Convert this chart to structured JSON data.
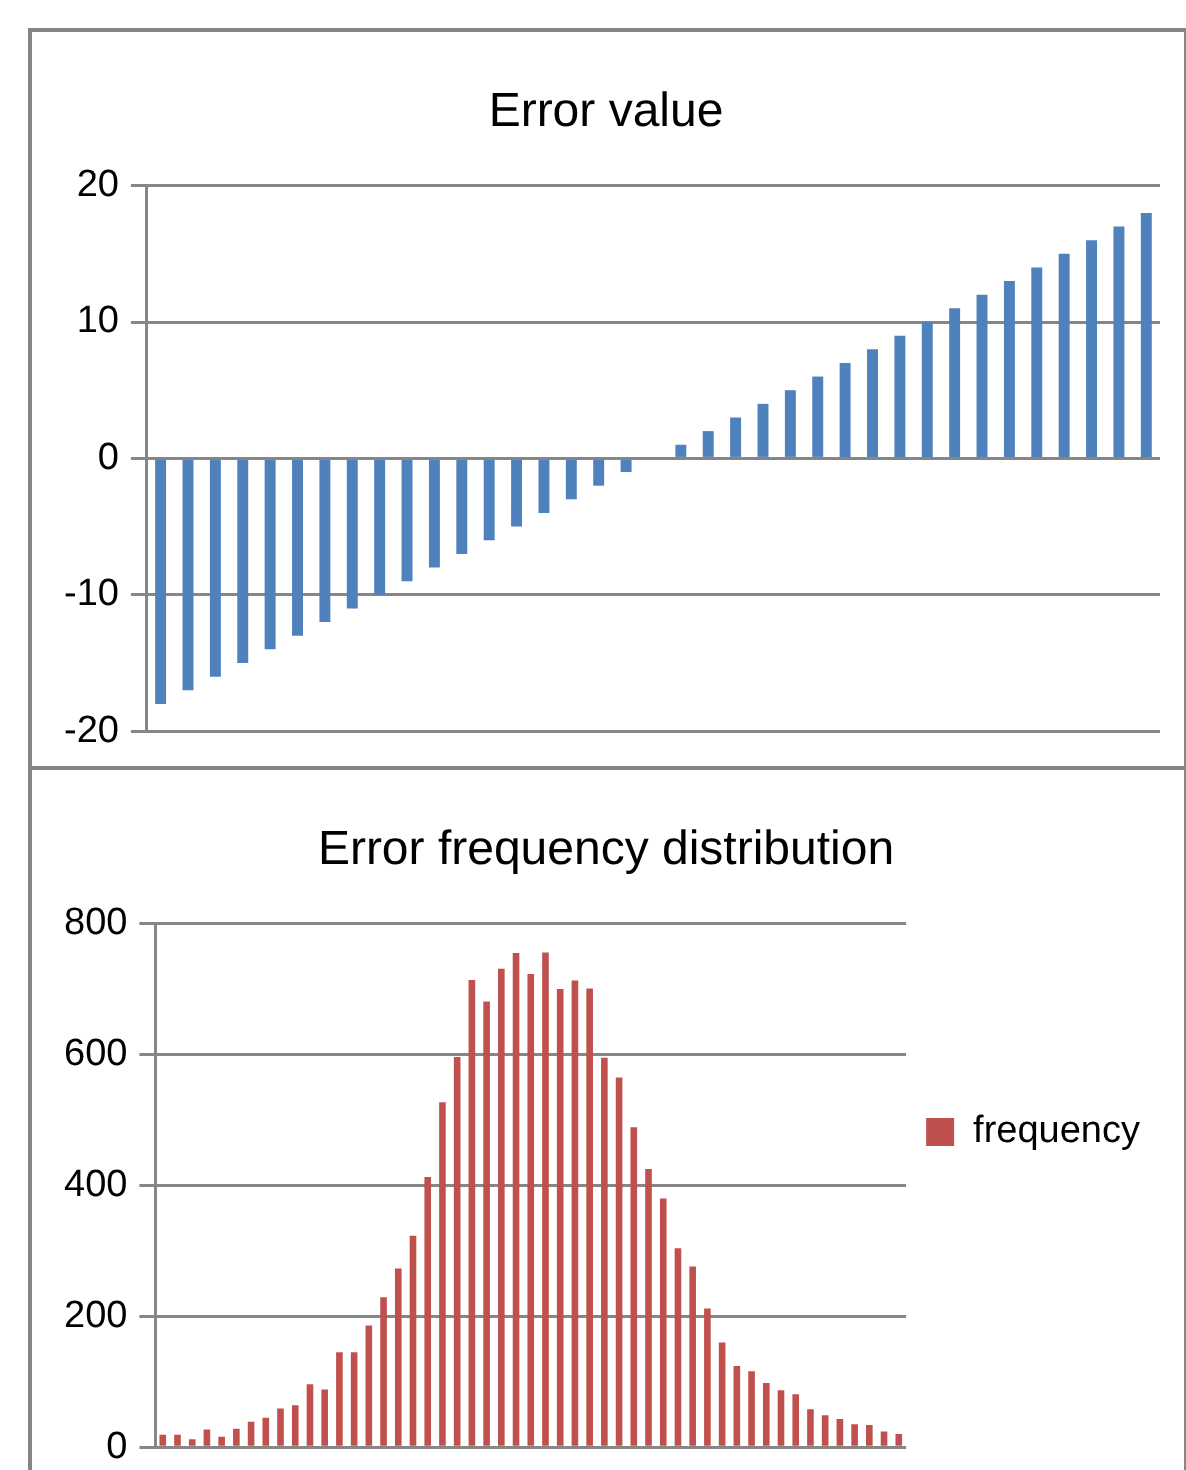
{
  "chart_data": [
    {
      "type": "bar",
      "title": "Error value",
      "categories": [
        null,
        null,
        null,
        null,
        null,
        null,
        null,
        null,
        null,
        null,
        null,
        null,
        null,
        null,
        null,
        null,
        null,
        null,
        null,
        null,
        null,
        null,
        null,
        null,
        null,
        null,
        null,
        null,
        null,
        null,
        null,
        null,
        null,
        null,
        null,
        null,
        null
      ],
      "series": [
        {
          "color": "#4f81bd",
          "values": [
            -18,
            -17,
            -16,
            -15,
            -14,
            -13,
            -12,
            -11,
            -10,
            -9,
            -8,
            -7,
            -6,
            -5,
            -4,
            -3,
            -2,
            -1,
            0,
            1,
            2,
            3,
            4,
            5,
            6,
            7,
            8,
            9,
            10,
            11,
            12,
            13,
            14,
            15,
            16,
            17,
            18
          ]
        }
      ],
      "ylim": [
        -20,
        20
      ],
      "yticks": [
        -20,
        -10,
        0,
        10,
        20
      ],
      "grid": "y",
      "legend": false,
      "tick_labels": "y"
    },
    {
      "type": "bar",
      "title": "Error frequency distribution",
      "categories": [
        null,
        null,
        null,
        null,
        null,
        null,
        null,
        null,
        null,
        null,
        null,
        null,
        null,
        null,
        null,
        null,
        null,
        null,
        null,
        null,
        null,
        null,
        null,
        null,
        null,
        null,
        null,
        null,
        null,
        null,
        null,
        null,
        null,
        null,
        null,
        null,
        null,
        null,
        null,
        null,
        null,
        null,
        null,
        null,
        null,
        null,
        null,
        null,
        null,
        null,
        null
      ],
      "series": [
        {
          "name": "frequency",
          "color": "#c0504d",
          "values": [
            19,
            19,
            12,
            27,
            16,
            28,
            39,
            45,
            59,
            64,
            96,
            88,
            145,
            145,
            186,
            229,
            273,
            323,
            413,
            527,
            596,
            714,
            681,
            731,
            755,
            723,
            756,
            700,
            713,
            701,
            595,
            565,
            489,
            425,
            380,
            304,
            276,
            212,
            160,
            124,
            116,
            98,
            87,
            81,
            58,
            49,
            43,
            35,
            34,
            24,
            20
          ]
        }
      ],
      "ylim": [
        0,
        800
      ],
      "yticks": [
        0,
        200,
        400,
        600,
        800
      ],
      "grid": "y",
      "legend": "right",
      "tick_labels": "y"
    }
  ]
}
